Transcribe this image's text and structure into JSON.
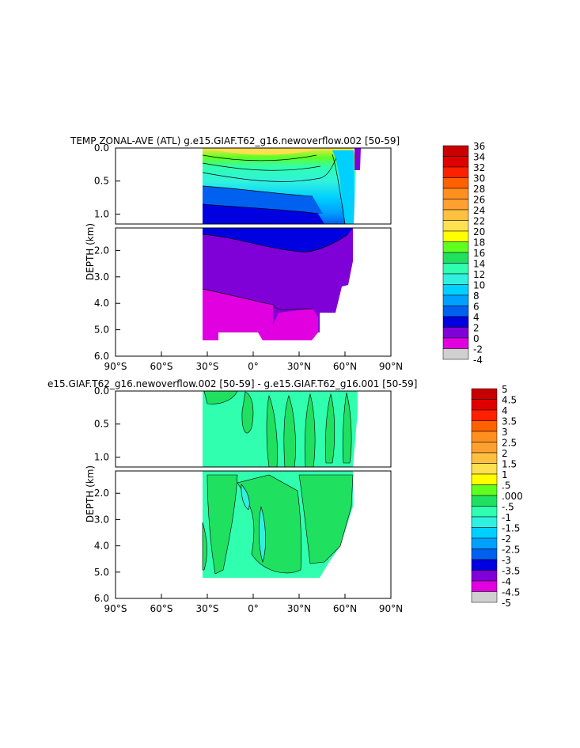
{
  "chart_data": [
    {
      "type": "heatmap",
      "title": "TEMP ZONAL-AVE (ATL) g.e15.GIAF.T62_g16.newoverflow.002 [50-59]",
      "xlabel": "",
      "ylabel": "DEPTH (km)",
      "x_ticks": [
        "90°S",
        "60°S",
        "30°S",
        "0°",
        "30°N",
        "60°N",
        "90°N"
      ],
      "x_tick_values": [
        -90,
        -60,
        -30,
        0,
        30,
        60,
        90
      ],
      "y_ticks_upper": [
        "0.0",
        "0.5",
        "1.0"
      ],
      "y_tick_values_upper": [
        0,
        0.5,
        1.0
      ],
      "y_ticks_lower": [
        "2.0",
        "3.0",
        "4.0",
        "5.0",
        "6.0"
      ],
      "y_tick_values_lower": [
        2,
        3,
        4,
        5,
        6
      ],
      "xlim": [
        -90,
        90
      ],
      "ylim_upper": [
        0,
        1.15
      ],
      "ylim_lower": [
        1.15,
        6.0
      ],
      "colorbar": {
        "labels": [
          "36",
          "34",
          "32",
          "30",
          "28",
          "26",
          "24",
          "22",
          "20",
          "18",
          "16",
          "14",
          "12",
          "10",
          "8",
          "6",
          "4",
          "2",
          "0",
          "-2",
          "-4"
        ],
        "colors": [
          "#c80000",
          "#e00000",
          "#ff2000",
          "#ff6000",
          "#ff9020",
          "#ffa030",
          "#ffc040",
          "#ffe050",
          "#ffff00",
          "#60ff20",
          "#20e060",
          "#30ffb0",
          "#30f0e0",
          "#00d0ff",
          "#00a0ff",
          "#0060f0",
          "#0000e0",
          "#8000d8",
          "#e000e0",
          "#d0d0d0",
          "#707070"
        ]
      },
      "fields": {
        "surface_warm_band": {
          "lat_range": [
            -35,
            55
          ],
          "depth_top": 0.0,
          "depth_bottom": 0.12,
          "value": 24
        },
        "thermocline": {
          "lat_range": [
            -35,
            65
          ],
          "depth_range": [
            0.1,
            1.0
          ],
          "value_range": [
            6,
            18
          ]
        },
        "deep_water": {
          "lat_range": [
            -35,
            66
          ],
          "depth_range": [
            1.2,
            4.2
          ],
          "value": 3
        },
        "bottom_water": {
          "lat_range": [
            -35,
            30
          ],
          "depth_range": [
            3.4,
            5.4
          ],
          "value": 1.5
        }
      }
    },
    {
      "type": "heatmap",
      "title": "e15.GIAF.T62_g16.newoverflow.002 [50-59] - g.e15.GIAF.T62_g16.001 [50-59]",
      "xlabel": "",
      "ylabel": "DEPTH (km)",
      "x_ticks": [
        "90°S",
        "60°S",
        "30°S",
        "0°",
        "30°N",
        "60°N",
        "90°N"
      ],
      "x_tick_values": [
        -90,
        -60,
        -30,
        0,
        30,
        60,
        90
      ],
      "y_ticks_upper": [
        "0.0",
        "0.5",
        "1.0"
      ],
      "y_tick_values_upper": [
        0,
        0.5,
        1.0
      ],
      "y_ticks_lower": [
        "2.0",
        "3.0",
        "4.0",
        "5.0",
        "6.0"
      ],
      "y_tick_values_lower": [
        2,
        3,
        4,
        5,
        6
      ],
      "xlim": [
        -90,
        90
      ],
      "ylim_upper": [
        0,
        1.15
      ],
      "ylim_lower": [
        1.15,
        6.0
      ],
      "colorbar": {
        "labels": [
          "5",
          "4.5",
          "4",
          "3.5",
          "3",
          "2.5",
          "2",
          "1.5",
          "1",
          ".5",
          ".000",
          "-.5",
          "-1",
          "-1.5",
          "-2",
          "-2.5",
          "-3",
          "-3.5",
          "-4",
          "-4.5",
          "-5"
        ],
        "colors": [
          "#c80000",
          "#e00000",
          "#ff2000",
          "#ff6000",
          "#ff9020",
          "#ffa030",
          "#ffc040",
          "#ffe050",
          "#ffff00",
          "#60ff20",
          "#20e060",
          "#30ffb0",
          "#30f0e0",
          "#00d0ff",
          "#00a0ff",
          "#0060f0",
          "#0000e0",
          "#8000d8",
          "#e000e0",
          "#d0d0d0",
          "#707070"
        ]
      },
      "fields": {
        "background": {
          "value_range": [
            -0.5,
            0.0
          ]
        },
        "positive_patches": {
          "value_range": [
            0.0,
            0.5
          ]
        }
      }
    }
  ]
}
